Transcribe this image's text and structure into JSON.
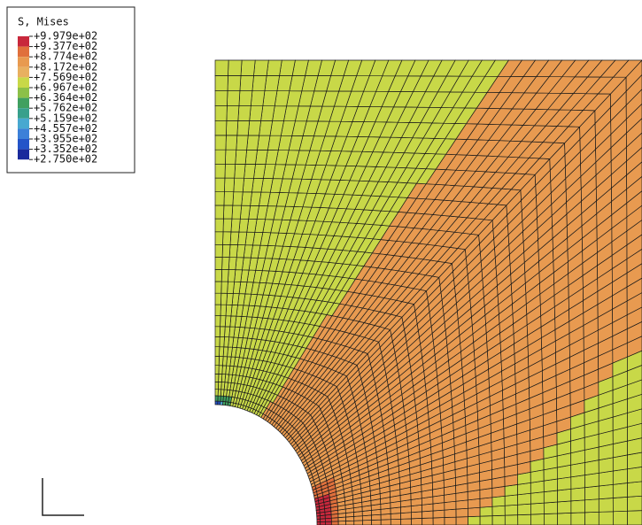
{
  "legend": {
    "title": "S, Mises",
    "labels": [
      "+9.979e+02",
      "+9.377e+02",
      "+8.774e+02",
      "+8.172e+02",
      "+7.569e+02",
      "+6.967e+02",
      "+6.364e+02",
      "+5.762e+02",
      "+5.159e+02",
      "+4.557e+02",
      "+3.955e+02",
      "+3.352e+02",
      "+2.750e+02"
    ],
    "colors": [
      "#c8283c",
      "#e0703c",
      "#e89a50",
      "#e8b060",
      "#c8d848",
      "#8cc048",
      "#40a060",
      "#38a08c",
      "#48a8d0",
      "#3c80d8",
      "#2454c8",
      "#1a2a9c"
    ]
  }
}
